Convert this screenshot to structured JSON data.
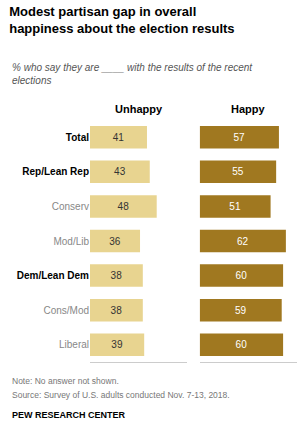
{
  "chart_data": {
    "type": "bar",
    "orientation": "horizontal",
    "title": "Modest partisan gap in overall\nhappiness about the election results",
    "subtitle": "% who say they are ____ with the results of the recent\nelections",
    "categories": [
      "Total",
      "Rep/Lean Rep",
      "Conserv",
      "Mod/Lib",
      "Dem/Lean Dem",
      "Cons/Mod",
      "Liberal"
    ],
    "series": [
      {
        "name": "Unhappy",
        "color": "#e8d490",
        "values": [
          41,
          43,
          48,
          36,
          38,
          38,
          39
        ]
      },
      {
        "name": "Happy",
        "color": "#a07820",
        "values": [
          57,
          55,
          51,
          62,
          60,
          59,
          60
        ]
      }
    ],
    "xlim": [
      0,
      70
    ],
    "data_labels": true,
    "tick_labels": "y",
    "grid": false,
    "annotations": [
      "Note: No answer not shown.",
      "Source: Survey of U.S. adults conducted Nov. 7-13, 2018.",
      "PEW RESEARCH CENTER"
    ]
  }
}
